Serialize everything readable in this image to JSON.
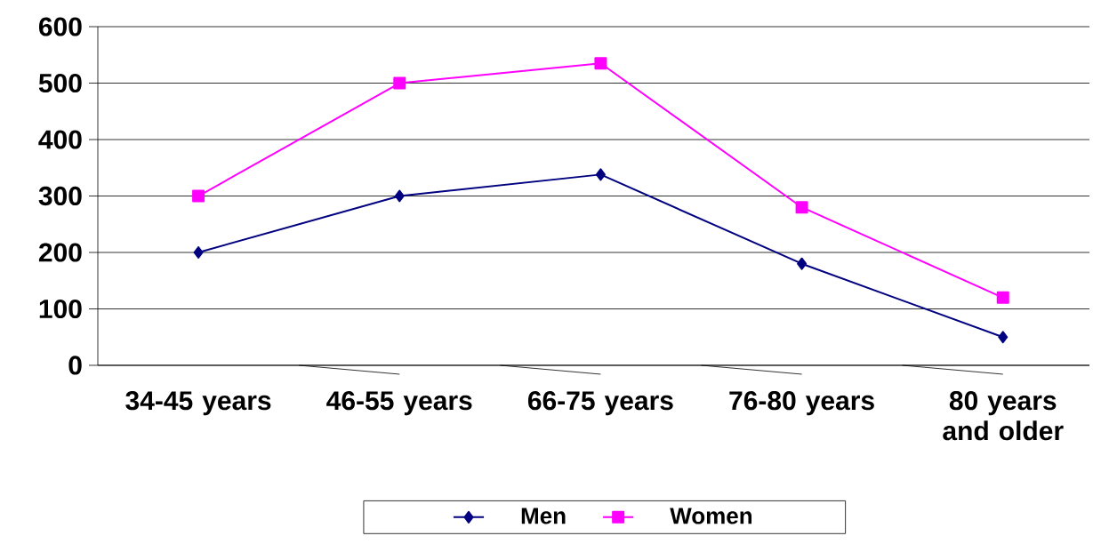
{
  "chart_data": {
    "type": "line",
    "categories": [
      "34-45 years",
      "46-55 years",
      "66-75 years",
      "76-80 years",
      "80 years and older"
    ],
    "series": [
      {
        "name": "Men",
        "color": "#000080",
        "marker": "diamond",
        "values": [
          200,
          300,
          338,
          180,
          50
        ]
      },
      {
        "name": "Women",
        "color": "#ff00ff",
        "marker": "square",
        "values": [
          300,
          500,
          535,
          280,
          120
        ]
      }
    ],
    "ylim": [
      0,
      600
    ],
    "yticks": [
      0,
      100,
      200,
      300,
      400,
      500,
      600
    ],
    "grid": "y",
    "legend": "bottom"
  }
}
